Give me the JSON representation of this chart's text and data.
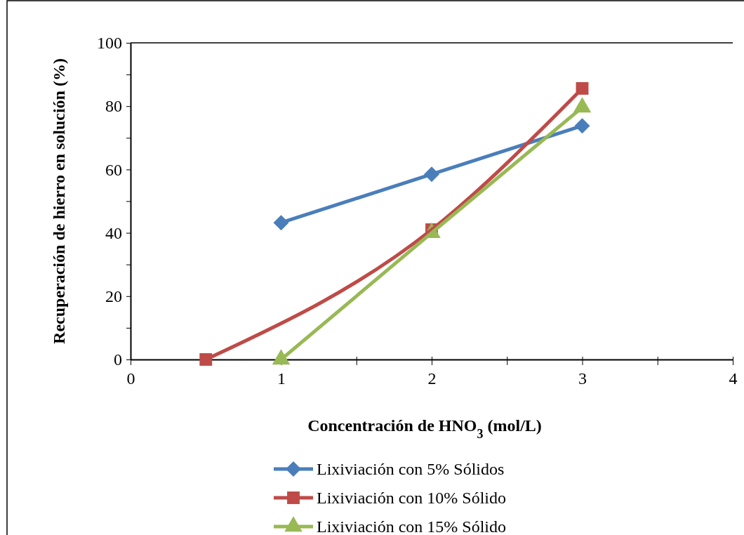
{
  "chart_data": {
    "type": "line",
    "xlabel": "Concentración de HNO$_{3}$ (mol/L)",
    "ylabel": "Recuperación de hierro en solución (%)",
    "xlim": [
      0,
      4
    ],
    "xticks": [
      0,
      {
        "value": 0.5,
        "label": null
      },
      1,
      {
        "value": 1.5,
        "label": null
      },
      2,
      {
        "value": 2.5,
        "label": null
      },
      3,
      {
        "value": 3.5,
        "label": null
      },
      4
    ],
    "ylim": [
      0,
      100
    ],
    "yticks": [
      0,
      {
        "value": 10,
        "label": null
      },
      20,
      {
        "value": 30,
        "label": null
      },
      40,
      {
        "value": 50,
        "label": null
      },
      60,
      {
        "value": 70,
        "label": null
      },
      80,
      {
        "value": 90,
        "label": null
      },
      100
    ],
    "legend": "bottom",
    "grid": false,
    "series": [
      {
        "name": "Lixiviación con 5% Sólidos",
        "color": "#4a7ebb",
        "marker": "diamond",
        "x": [
          1,
          2,
          3
        ],
        "values": [
          43.2,
          58.5,
          73.8
        ]
      },
      {
        "name": "Lixiviación con 10% Sólido",
        "color": "#be4b48",
        "marker": "square",
        "x": [
          0.5,
          2,
          3
        ],
        "values": [
          0,
          41,
          85.6
        ]
      },
      {
        "name": "Lixiviación con 15% Sólido",
        "color": "#98b954",
        "marker": "triangle",
        "x": [
          1,
          2,
          3
        ],
        "values": [
          0,
          40,
          79.6
        ]
      }
    ]
  }
}
